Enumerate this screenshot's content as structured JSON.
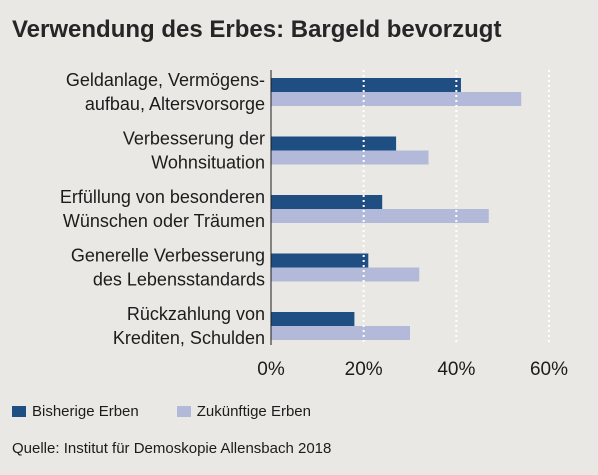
{
  "chart_data": {
    "type": "bar",
    "orientation": "horizontal",
    "title": "Verwendung des Erbes: Bargeld bevorzugt",
    "categories": [
      [
        "Geldanlage, Vermögens-",
        "aufbau, Altersvorsorge"
      ],
      [
        "Verbesserung der",
        "Wohnsituation"
      ],
      [
        "Erfüllung von besonderen",
        "Wünschen oder Träumen"
      ],
      [
        "Generelle Verbesserung",
        "des Lebensstandards"
      ],
      [
        "Rückzahlung von",
        "Krediten, Schulden"
      ]
    ],
    "series": [
      {
        "name": "Bisherige Erben",
        "color": "#1f4e82",
        "values": [
          41,
          27,
          24,
          21,
          18
        ]
      },
      {
        "name": "Zukünftige Erben",
        "color": "#b3bad9",
        "values": [
          54,
          34,
          47,
          32,
          30
        ]
      }
    ],
    "xlim": [
      0,
      60
    ],
    "xticks": [
      "0%",
      "20%",
      "40%",
      "60%"
    ],
    "grid": true,
    "legend_position": "bottom"
  },
  "source": "Quelle: Institut für Demoskopie Allensbach 2018"
}
